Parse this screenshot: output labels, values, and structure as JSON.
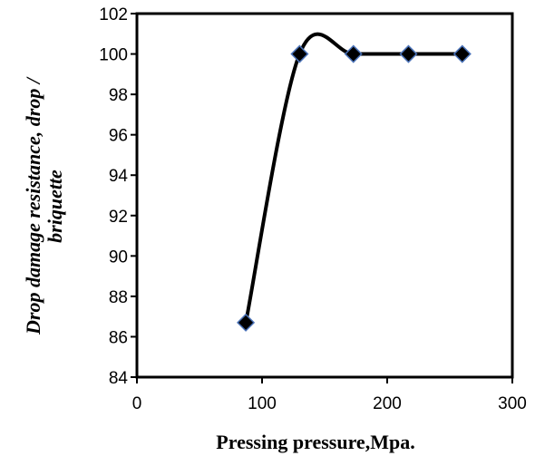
{
  "chart_data": {
    "type": "line",
    "xlabel": "Pressing pressure,Mpa.",
    "ylabel_lines": [
      "Drop damage resistance, drop /",
      "briquette"
    ],
    "xlim": [
      0,
      300
    ],
    "ylim": [
      84,
      102
    ],
    "x_ticks": [
      0,
      100,
      200,
      300
    ],
    "y_ticks": [
      84,
      86,
      88,
      90,
      92,
      94,
      96,
      98,
      100,
      102
    ],
    "x_tick_labels": [
      "0",
      "100",
      "200",
      "300"
    ],
    "y_tick_labels": [
      "84",
      "86",
      "88",
      "90",
      "92",
      "94",
      "96",
      "98",
      "100",
      "102"
    ],
    "grid": false,
    "legend": "none",
    "smoothed": true,
    "line_color": "#000000",
    "marker": "diamond",
    "marker_fill": "#000000",
    "marker_edge": "#4a72b8",
    "series": [
      {
        "x": [
          87,
          130,
          173,
          217,
          260
        ],
        "y": [
          86.7,
          100,
          100,
          100,
          100
        ]
      }
    ]
  }
}
